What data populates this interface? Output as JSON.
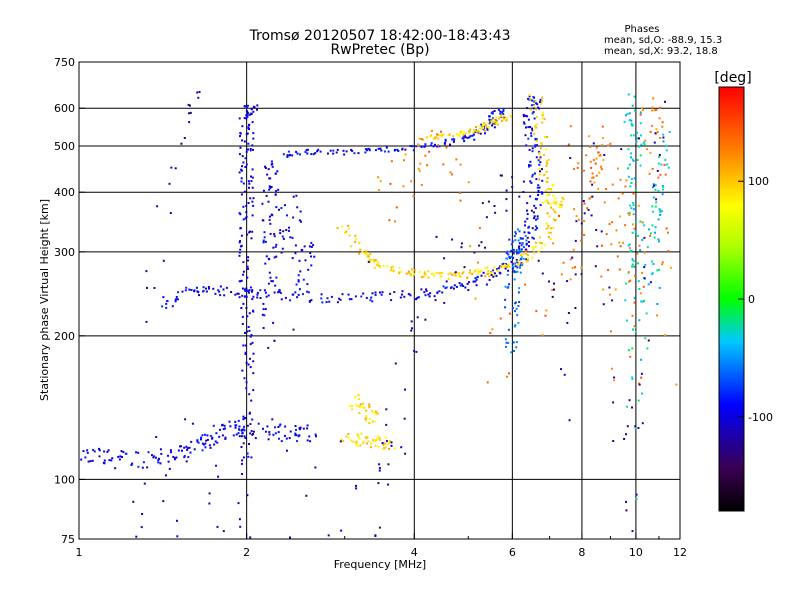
{
  "chart_data": {
    "type": "scatter",
    "title": "Tromsø 20120507 18:42:00-18:43:43",
    "subtitle": "RwPretec (Bp)",
    "xlabel": "Frequency [MHz]",
    "ylabel": "Stationary phase Virtual Height [km]",
    "xscale": "log",
    "yscale": "log",
    "xlim": [
      1,
      12
    ],
    "ylim": [
      75,
      750
    ],
    "x_ticks": [
      1,
      2,
      4,
      6,
      8,
      10,
      12
    ],
    "x_tick_labels": [
      "1",
      "2",
      "4",
      "6",
      "8",
      "10",
      "12"
    ],
    "y_ticks": [
      75,
      100,
      200,
      300,
      400,
      500,
      600,
      750
    ],
    "y_tick_labels": [
      "75",
      "100",
      "200",
      "300",
      "400",
      "500",
      "600",
      "750"
    ],
    "grid": true,
    "phases": {
      "heading": "Phases",
      "line_o": "mean, sd,O: -88.9, 15.3",
      "line_x": "mean, sd,X: 93.2, 18.8"
    },
    "colorbar": {
      "label": "[deg]",
      "range": [
        -180,
        180
      ],
      "ticks": [
        100,
        0,
        -100
      ],
      "tick_labels": [
        "100",
        "0",
        "-100"
      ]
    },
    "traces": [
      {
        "name": "",
        "phase_deg": -95,
        "spread_km": 5,
        "points": [
          [
            1.0,
            112
          ],
          [
            1.1,
            111
          ],
          [
            1.2,
            110
          ],
          [
            1.35,
            111
          ],
          [
            1.5,
            113
          ],
          [
            1.6,
            116
          ],
          [
            1.7,
            120
          ],
          [
            1.8,
            125
          ],
          [
            1.9,
            128
          ],
          [
            2.0,
            127
          ],
          [
            2.2,
            126
          ],
          [
            2.4,
            125
          ],
          [
            2.6,
            125
          ]
        ]
      },
      {
        "name": "",
        "phase_deg": -100,
        "spread_km": 10,
        "points": [
          [
            2.0,
            100
          ],
          [
            2.0,
            130
          ],
          [
            2.0,
            170
          ],
          [
            2.0,
            200
          ],
          [
            2.0,
            240
          ],
          [
            2.0,
            280
          ],
          [
            2.0,
            330
          ],
          [
            2.0,
            380
          ],
          [
            2.0,
            430
          ],
          [
            2.0,
            480
          ],
          [
            2.0,
            530
          ],
          [
            2.0,
            580
          ],
          [
            2.05,
            600
          ]
        ]
      },
      {
        "name": "",
        "phase_deg": -100,
        "spread_km": 20,
        "points": [
          [
            2.2,
            200
          ],
          [
            2.2,
            260
          ],
          [
            2.2,
            320
          ],
          [
            2.2,
            400
          ],
          [
            2.2,
            460
          ],
          [
            2.3,
            300
          ],
          [
            2.4,
            380
          ],
          [
            2.5,
            260
          ],
          [
            2.6,
            300
          ]
        ]
      },
      {
        "name": "",
        "phase_deg": -95,
        "spread_km": 6,
        "points": [
          [
            1.4,
            230
          ],
          [
            1.55,
            248
          ],
          [
            1.7,
            250
          ],
          [
            1.9,
            247
          ],
          [
            2.1,
            245
          ],
          [
            2.4,
            242
          ],
          [
            2.8,
            240
          ],
          [
            3.3,
            240
          ],
          [
            3.8,
            243
          ],
          [
            4.3,
            247
          ],
          [
            4.8,
            253
          ],
          [
            5.3,
            262
          ],
          [
            5.8,
            275
          ],
          [
            6.1,
            288
          ],
          [
            6.3,
            305
          ],
          [
            6.45,
            330
          ],
          [
            6.55,
            360
          ],
          [
            6.6,
            400
          ],
          [
            6.6,
            450
          ],
          [
            6.5,
            500
          ],
          [
            6.45,
            550
          ],
          [
            6.5,
            600
          ],
          [
            6.6,
            630
          ]
        ]
      },
      {
        "name": "",
        "phase_deg": -95,
        "spread_km": 6,
        "points": [
          [
            2.3,
            480
          ],
          [
            2.6,
            485
          ],
          [
            3.0,
            485
          ],
          [
            3.5,
            490
          ],
          [
            4.0,
            495
          ],
          [
            4.5,
            505
          ],
          [
            5.0,
            520
          ],
          [
            5.3,
            540
          ],
          [
            5.55,
            565
          ],
          [
            5.7,
            590
          ]
        ]
      },
      {
        "name": "",
        "phase_deg": 95,
        "spread_km": 5,
        "points": [
          [
            3.0,
            340
          ],
          [
            3.2,
            300
          ],
          [
            3.4,
            285
          ],
          [
            3.7,
            275
          ],
          [
            4.0,
            270
          ],
          [
            4.4,
            268
          ],
          [
            4.8,
            268
          ],
          [
            5.2,
            270
          ],
          [
            5.6,
            275
          ],
          [
            6.0,
            282
          ],
          [
            6.4,
            295
          ],
          [
            6.8,
            315
          ],
          [
            7.1,
            350
          ],
          [
            7.2,
            385
          ]
        ]
      },
      {
        "name": "",
        "phase_deg": 95,
        "spread_km": 5,
        "points": [
          [
            4.2,
            520
          ],
          [
            4.6,
            525
          ],
          [
            5.0,
            535
          ],
          [
            5.3,
            545
          ],
          [
            5.6,
            560
          ],
          [
            5.8,
            575
          ]
        ]
      },
      {
        "name": "",
        "phase_deg": 95,
        "spread_km": 4,
        "points": [
          [
            6.6,
            640
          ],
          [
            6.7,
            560
          ],
          [
            6.8,
            480
          ],
          [
            6.9,
            420
          ],
          [
            7.0,
            380
          ]
        ]
      },
      {
        "name": "",
        "phase_deg": 95,
        "spread_km": 4,
        "points": [
          [
            3.0,
            122
          ],
          [
            3.2,
            121
          ],
          [
            3.4,
            120
          ],
          [
            3.6,
            119
          ]
        ]
      },
      {
        "name": "",
        "phase_deg": 95,
        "spread_km": 5,
        "points": [
          [
            3.1,
            148
          ],
          [
            3.25,
            140
          ],
          [
            3.35,
            135
          ]
        ]
      },
      {
        "name": "",
        "phase_deg": -60,
        "spread_km": 12,
        "points": [
          [
            6.0,
            180
          ],
          [
            6.0,
            220
          ],
          [
            6.0,
            260
          ],
          [
            6.0,
            300
          ],
          [
            6.2,
            330
          ],
          [
            6.1,
            280
          ]
        ]
      },
      {
        "name": "",
        "phase_deg": -30,
        "spread_km": 60,
        "points": [
          [
            9.8,
            150
          ],
          [
            9.9,
            250
          ],
          [
            10.0,
            350
          ],
          [
            10.0,
            450
          ],
          [
            10.1,
            550
          ],
          [
            9.7,
            600
          ],
          [
            10.2,
            200
          ],
          [
            10.5,
            300
          ],
          [
            11.0,
            400
          ],
          [
            11.2,
            480
          ],
          [
            10.8,
            250
          ]
        ]
      },
      {
        "name": "",
        "phase_deg": 130,
        "spread_km": 60,
        "points": [
          [
            3.5,
            380
          ],
          [
            4.0,
            460
          ],
          [
            4.5,
            520
          ],
          [
            5.5,
            200
          ],
          [
            7.5,
            300
          ],
          [
            8.1,
            350
          ],
          [
            8.5,
            500
          ],
          [
            9.0,
            200
          ],
          [
            9.5,
            420
          ],
          [
            10.0,
            180
          ],
          [
            10.5,
            550
          ],
          [
            11.0,
            600
          ],
          [
            11.5,
            200
          ],
          [
            7.8,
            500
          ],
          [
            8.8,
            450
          ]
        ]
      },
      {
        "name": "",
        "phase_deg": -120,
        "spread_km": 40,
        "points": [
          [
            1.2,
            80
          ],
          [
            1.5,
            95
          ],
          [
            1.8,
            98
          ],
          [
            2.1,
            96
          ],
          [
            3.5,
            80
          ],
          [
            3.5,
            90
          ],
          [
            4.0,
            200
          ],
          [
            5.0,
            300
          ],
          [
            6.0,
            450
          ],
          [
            7.5,
            160
          ],
          [
            8.2,
            420
          ],
          [
            9.5,
            90
          ],
          [
            10.2,
            130
          ],
          [
            11.0,
            580
          ],
          [
            1.3,
            190
          ],
          [
            1.6,
            610
          ]
        ]
      }
    ]
  }
}
